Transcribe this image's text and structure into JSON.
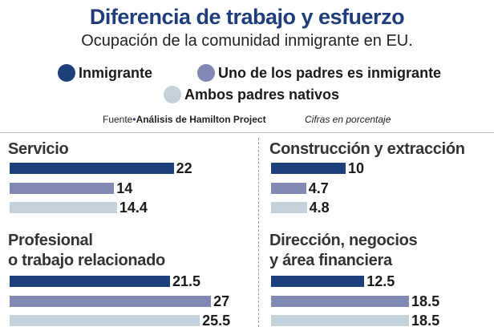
{
  "title": "Diferencia de trabajo y esfuerzo",
  "subtitle": "Ocupación de la comunidad inmigrante en EU.",
  "source_label": "Fuente",
  "source": "Análisis de Hamilton Project",
  "note": "Cifras en porcentaje",
  "chart_data": {
    "type": "bar",
    "categories": [
      "Servicio",
      "Construcción y extracción",
      "Profesional\no trabajo relacionado",
      "Dirección, negocios\ny área financiera"
    ],
    "series": [
      {
        "name": "Inmigrante",
        "color": "#1d3f7a",
        "values": [
          22,
          10,
          21.5,
          12.5
        ]
      },
      {
        "name": "Uno de los padres es inmigrante",
        "color": "#8188b4",
        "values": [
          14,
          4.7,
          27,
          18.5
        ]
      },
      {
        "name": "Ambos padres nativos",
        "color": "#c4d0da",
        "values": [
          14.4,
          4.8,
          25.5,
          18.5
        ]
      }
    ]
  }
}
